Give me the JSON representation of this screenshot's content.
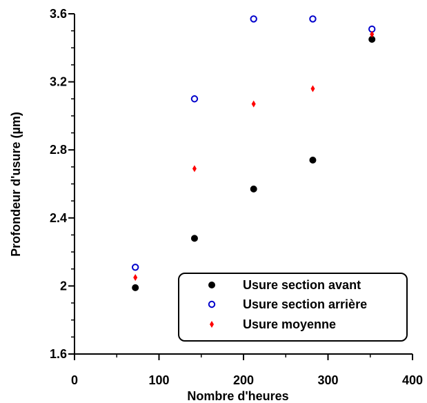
{
  "chart_data": {
    "type": "scatter",
    "title": "",
    "xlabel": "Nombre d'heures",
    "ylabel": "Profondeur d'usure (µm)",
    "xlim": [
      0,
      400
    ],
    "ylim": [
      1.6,
      3.6
    ],
    "xticks": [
      0,
      100,
      200,
      300,
      400
    ],
    "xtick_labels": [
      "0",
      "100",
      "200",
      "300",
      "400"
    ],
    "yticks": [
      1.6,
      2.0,
      2.4,
      2.8,
      3.2,
      3.6
    ],
    "ytick_labels": [
      "1.6",
      "2",
      "2.4",
      "2.8",
      "3.2",
      "3.6"
    ],
    "grid": false,
    "legend_position": "bottom-right",
    "series": [
      {
        "name": "Usure section avant",
        "marker": "filled-circle",
        "color": "#000000",
        "x": [
          72,
          142,
          212,
          282,
          352
        ],
        "y": [
          1.99,
          2.28,
          2.57,
          2.74,
          3.45
        ]
      },
      {
        "name": "Usure section arrière",
        "marker": "open-circle",
        "color": "#0000cc",
        "x": [
          72,
          142,
          212,
          282,
          352
        ],
        "y": [
          2.11,
          3.1,
          3.57,
          3.57,
          3.51
        ]
      },
      {
        "name": "Usure moyenne",
        "marker": "diamond",
        "color": "#ff0000",
        "x": [
          72,
          142,
          212,
          282,
          352
        ],
        "y": [
          2.05,
          2.69,
          3.07,
          3.16,
          3.48
        ]
      }
    ]
  }
}
